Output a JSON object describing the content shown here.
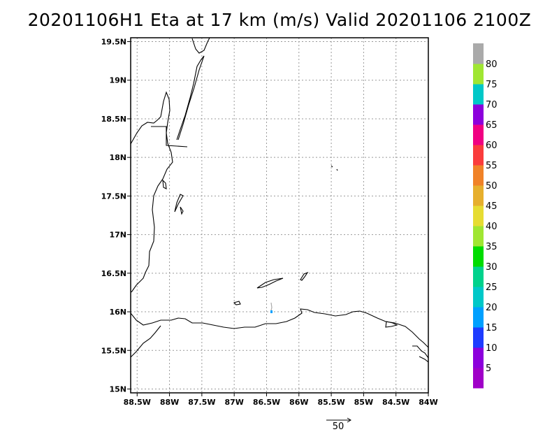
{
  "title": "20201106H1 Eta at 17 km (m/s) Valid 20201106 2100Z",
  "map": {
    "lon_range": [
      -88.6,
      -84.0
    ],
    "lat_range": [
      14.95,
      19.55
    ],
    "grid": true,
    "x_ticks": [
      {
        "value": -88.5,
        "label": "88.5W"
      },
      {
        "value": -88.0,
        "label": "88W"
      },
      {
        "value": -87.5,
        "label": "87.5W"
      },
      {
        "value": -87.0,
        "label": "87W"
      },
      {
        "value": -86.5,
        "label": "86.5W"
      },
      {
        "value": -86.0,
        "label": "86W"
      },
      {
        "value": -85.5,
        "label": "85.5W"
      },
      {
        "value": -85.0,
        "label": "85W"
      },
      {
        "value": -84.5,
        "label": "84.5W"
      },
      {
        "value": -84.0,
        "label": "84W"
      }
    ],
    "y_ticks": [
      {
        "value": 19.5,
        "label": "19.5N"
      },
      {
        "value": 19.0,
        "label": "19N"
      },
      {
        "value": 18.5,
        "label": "18.5N"
      },
      {
        "value": 18.0,
        "label": "18N"
      },
      {
        "value": 17.5,
        "label": "17.5N"
      },
      {
        "value": 17.0,
        "label": "17N"
      },
      {
        "value": 16.5,
        "label": "16.5N"
      },
      {
        "value": 16.0,
        "label": "16N"
      },
      {
        "value": 15.5,
        "label": "15.5N"
      },
      {
        "value": 15.0,
        "label": "15N"
      }
    ]
  },
  "colorbar": {
    "segments": [
      {
        "color": "#a000c8"
      },
      {
        "color": "#8c00dc"
      },
      {
        "color": "#1e3cff"
      },
      {
        "color": "#00a0ff"
      },
      {
        "color": "#00c8c8"
      },
      {
        "color": "#00d28c"
      },
      {
        "color": "#00dc00"
      },
      {
        "color": "#a0e632"
      },
      {
        "color": "#e6dc32"
      },
      {
        "color": "#e6af2d"
      },
      {
        "color": "#f08228"
      },
      {
        "color": "#fa3c3c"
      },
      {
        "color": "#f00082"
      },
      {
        "color": "#8c00dc"
      },
      {
        "color": "#00c8c8"
      },
      {
        "color": "#a0e632"
      },
      {
        "color": "#aaaaaa"
      }
    ],
    "labels": [
      "5",
      "10",
      "15",
      "20",
      "25",
      "30",
      "35",
      "40",
      "45",
      "50",
      "55",
      "60",
      "65",
      "70",
      "75",
      "80"
    ]
  },
  "reference_vector": {
    "label": "50"
  }
}
